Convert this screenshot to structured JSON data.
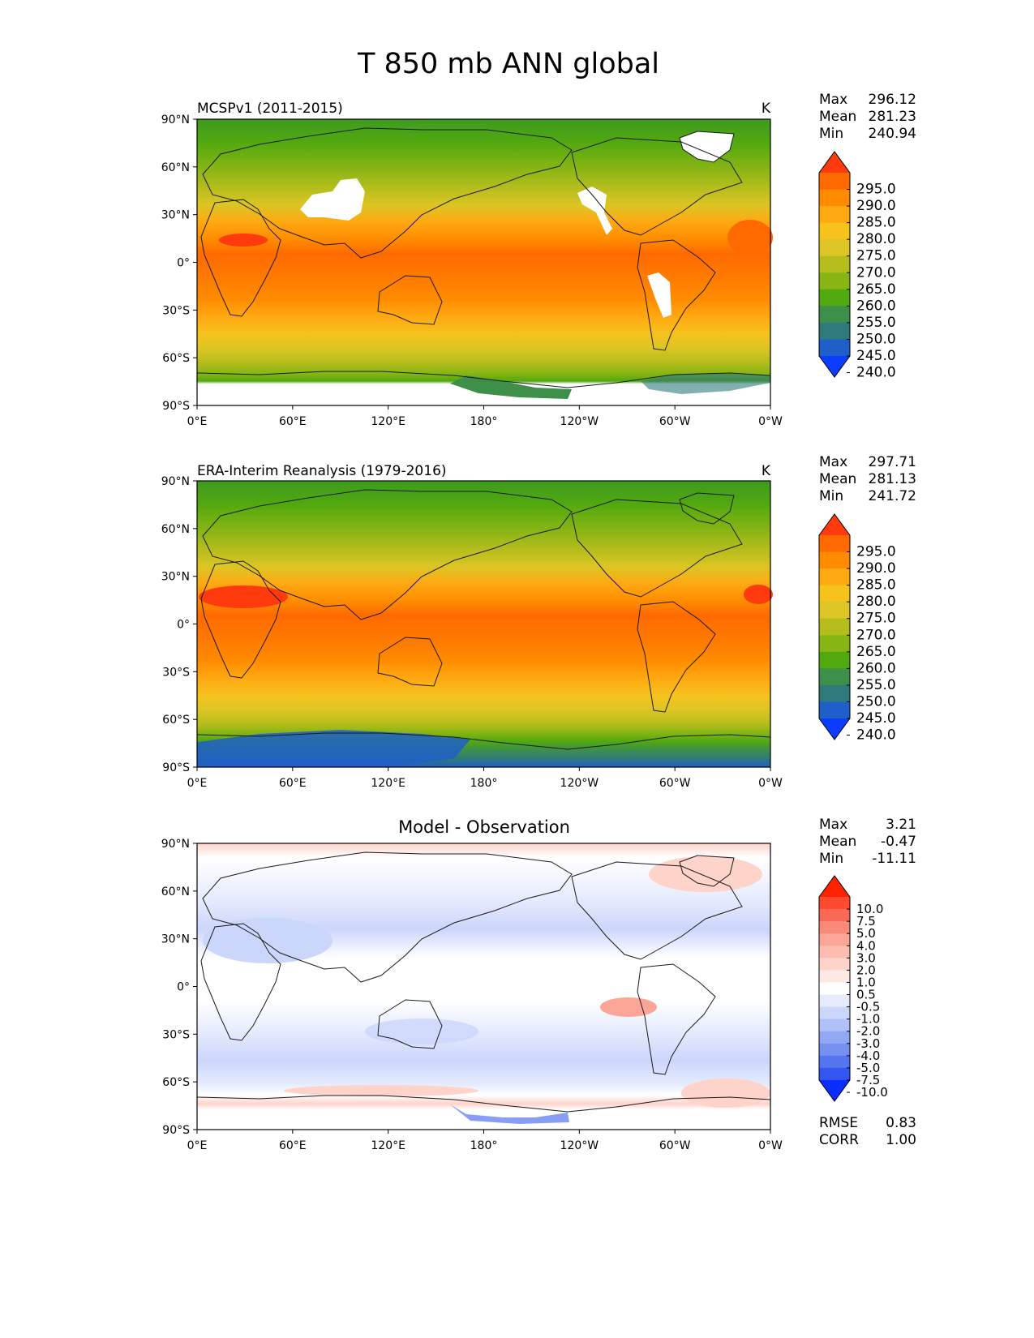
{
  "figure": {
    "title": "T 850 mb ANN global"
  },
  "axes": {
    "lat_ticks": [
      "90°N",
      "60°N",
      "30°N",
      "0°",
      "30°S",
      "60°S",
      "90°S"
    ],
    "lon_ticks": [
      "0°E",
      "60°E",
      "120°E",
      "180°",
      "120°W",
      "60°W",
      "0°W"
    ]
  },
  "chart_data": [
    {
      "type": "heatmap",
      "panel": "model",
      "title": "MCSPv1 (2011-2015)",
      "units": "K",
      "stats": {
        "max_label": "Max",
        "max": "296.12",
        "mean_label": "Mean",
        "mean": "281.23",
        "min_label": "Min",
        "min": "240.94"
      },
      "colorbar": {
        "levels": [
          "295.0",
          "290.0",
          "285.0",
          "280.0",
          "275.0",
          "270.0",
          "265.0",
          "260.0",
          "255.0",
          "250.0",
          "245.0",
          "240.0"
        ],
        "colors": [
          "#ff3a0d",
          "#ff6a00",
          "#ff8c00",
          "#ffa812",
          "#f6c21c",
          "#dcc524",
          "#b5bd1c",
          "#86b514",
          "#52a80f",
          "#3d8f4a",
          "#2f7a7a",
          "#1f5fc9",
          "#0b3cff"
        ]
      },
      "xlim": [
        0,
        360
      ],
      "ylim": [
        -90,
        90
      ]
    },
    {
      "type": "heatmap",
      "panel": "observation",
      "title": "ERA-Interim Reanalysis (1979-2016)",
      "units": "K",
      "stats": {
        "max_label": "Max",
        "max": "297.71",
        "mean_label": "Mean",
        "mean": "281.13",
        "min_label": "Min",
        "min": "241.72"
      },
      "colorbar": {
        "levels": [
          "295.0",
          "290.0",
          "285.0",
          "280.0",
          "275.0",
          "270.0",
          "265.0",
          "260.0",
          "255.0",
          "250.0",
          "245.0",
          "240.0"
        ],
        "colors": [
          "#ff3a0d",
          "#ff6a00",
          "#ff8c00",
          "#ffa812",
          "#f6c21c",
          "#dcc524",
          "#b5bd1c",
          "#86b514",
          "#52a80f",
          "#3d8f4a",
          "#2f7a7a",
          "#1f5fc9",
          "#0b3cff"
        ]
      },
      "xlim": [
        0,
        360
      ],
      "ylim": [
        -90,
        90
      ]
    },
    {
      "type": "heatmap",
      "panel": "difference",
      "title": "Model - Observation",
      "units": "",
      "stats": {
        "max_label": "Max",
        "max": "3.21",
        "mean_label": "Mean",
        "mean": "-0.47",
        "min_label": "Min",
        "min": "-11.11"
      },
      "metrics": {
        "rmse_label": "RMSE",
        "rmse": "0.83",
        "corr_label": "CORR",
        "corr": "1.00"
      },
      "colorbar": {
        "levels": [
          "10.0",
          "7.5",
          "5.0",
          "4.0",
          "3.0",
          "2.0",
          "1.0",
          "0.5",
          "-0.5",
          "-1.0",
          "-2.0",
          "-3.0",
          "-4.0",
          "-5.0",
          "-7.5",
          "-10.0"
        ],
        "colors": [
          "#ff2200",
          "#ff4a30",
          "#f86a55",
          "#f98a78",
          "#fba596",
          "#fcbcb0",
          "#fdd3ca",
          "#fee8e3",
          "#ffffff",
          "#e5ebfd",
          "#cbd6fb",
          "#b0c0f8",
          "#93a8f5",
          "#7690f2",
          "#5575f0",
          "#3355f2",
          "#0b2cff"
        ]
      },
      "xlim": [
        0,
        360
      ],
      "ylim": [
        -90,
        90
      ]
    }
  ]
}
